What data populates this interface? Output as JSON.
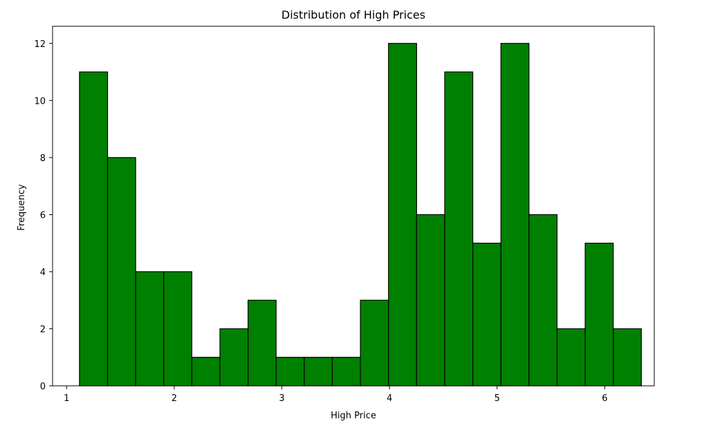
{
  "chart_data": {
    "type": "bar",
    "title": "Distribution of High Prices",
    "xlabel": "High Price",
    "ylabel": "Frequency",
    "xlim": [
      0.87,
      6.46
    ],
    "ylim": [
      0,
      12.6
    ],
    "xticks": [
      1,
      2,
      3,
      4,
      5,
      6
    ],
    "yticks": [
      0,
      2,
      4,
      6,
      8,
      10,
      12
    ],
    "bin_start": 1.12,
    "bin_width": 0.261,
    "values": [
      11,
      8,
      4,
      4,
      1,
      2,
      3,
      1,
      1,
      1,
      3,
      12,
      6,
      11,
      5,
      12,
      6,
      2,
      5,
      2
    ],
    "color": "#008000",
    "edgecolor": "#000000",
    "grid": false
  }
}
